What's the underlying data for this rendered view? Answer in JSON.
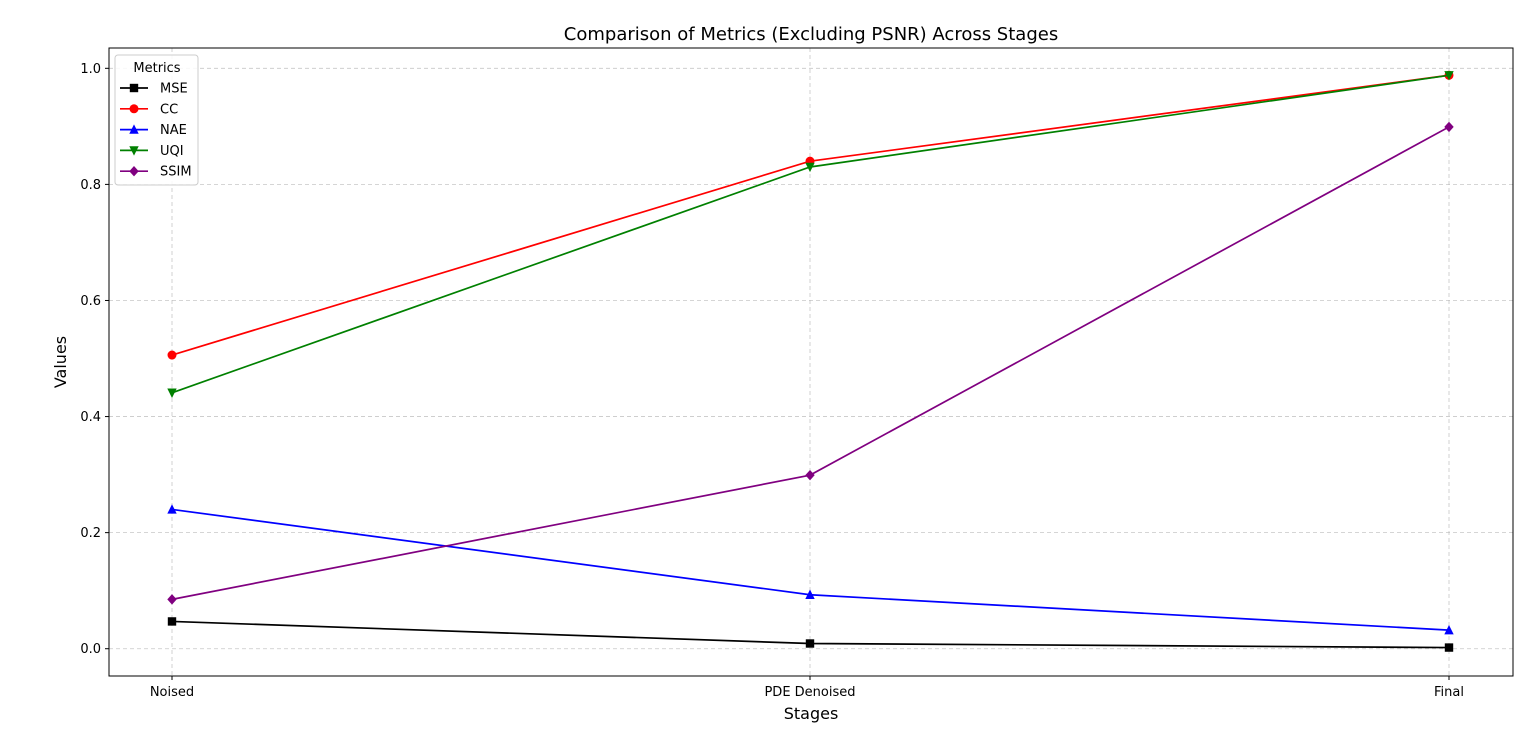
{
  "chart_data": {
    "type": "line",
    "title": "Comparison of Metrics (Excluding PSNR) Across Stages",
    "xlabel": "Stages",
    "ylabel": "Values",
    "categories": [
      "Noised",
      "PDE Denoised",
      "Final"
    ],
    "ylim": [
      -0.047,
      1.035
    ],
    "yticks": [
      0.0,
      0.2,
      0.4,
      0.6,
      0.8,
      1.0
    ],
    "ytick_labels": [
      "0.0",
      "0.2",
      "0.4",
      "0.6",
      "0.8",
      "1.0"
    ],
    "grid": true,
    "legend": {
      "title": "Metrics",
      "placement": "top-left"
    },
    "series": [
      {
        "name": "MSE",
        "color": "#000000",
        "marker": "square",
        "values": [
          0.047,
          0.009,
          0.002
        ]
      },
      {
        "name": "CC",
        "color": "#ff0000",
        "marker": "circle",
        "values": [
          0.506,
          0.84,
          0.988
        ]
      },
      {
        "name": "NAE",
        "color": "#0000ff",
        "marker": "triangle-up",
        "values": [
          0.24,
          0.093,
          0.032
        ]
      },
      {
        "name": "UQI",
        "color": "#008000",
        "marker": "triangle-down",
        "values": [
          0.441,
          0.83,
          0.988
        ]
      },
      {
        "name": "SSIM",
        "color": "#800080",
        "marker": "diamond",
        "values": [
          0.085,
          0.299,
          0.899
        ]
      }
    ]
  }
}
